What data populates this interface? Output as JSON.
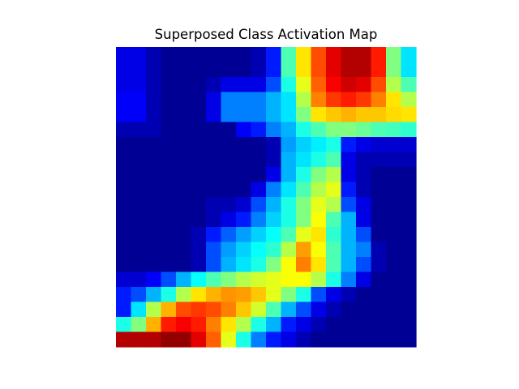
{
  "chart_data": {
    "type": "heatmap",
    "title": "Superposed Class Activation Map",
    "xlabel": "",
    "ylabel": "",
    "axes_visible": false,
    "colormap": "jet",
    "value_range": [
      0,
      1
    ],
    "rows": 20,
    "cols": 20,
    "values": [
      [
        0.1,
        0.1,
        0.05,
        0.02,
        0.02,
        0.02,
        0.02,
        0.02,
        0.02,
        0.05,
        0.15,
        0.45,
        0.65,
        0.8,
        0.9,
        0.95,
        0.95,
        0.85,
        0.5,
        0.35
      ],
      [
        0.1,
        0.1,
        0.05,
        0.02,
        0.02,
        0.02,
        0.02,
        0.02,
        0.02,
        0.05,
        0.15,
        0.45,
        0.65,
        0.8,
        0.9,
        0.95,
        0.95,
        0.85,
        0.5,
        0.35
      ],
      [
        0.1,
        0.1,
        0.05,
        0.02,
        0.02,
        0.02,
        0.05,
        0.1,
        0.1,
        0.1,
        0.2,
        0.4,
        0.6,
        0.78,
        0.88,
        0.92,
        0.9,
        0.8,
        0.55,
        0.45
      ],
      [
        0.12,
        0.12,
        0.05,
        0.02,
        0.02,
        0.02,
        0.1,
        0.25,
        0.25,
        0.25,
        0.3,
        0.35,
        0.55,
        0.75,
        0.82,
        0.85,
        0.82,
        0.75,
        0.65,
        0.55
      ],
      [
        0.12,
        0.12,
        0.05,
        0.02,
        0.02,
        0.02,
        0.1,
        0.25,
        0.25,
        0.25,
        0.3,
        0.35,
        0.5,
        0.65,
        0.68,
        0.7,
        0.68,
        0.68,
        0.66,
        0.65
      ],
      [
        0.05,
        0.05,
        0.05,
        0.02,
        0.02,
        0.02,
        0.02,
        0.02,
        0.12,
        0.15,
        0.25,
        0.3,
        0.4,
        0.45,
        0.5,
        0.5,
        0.48,
        0.45,
        0.44,
        0.42
      ],
      [
        0.02,
        0.02,
        0.02,
        0.02,
        0.02,
        0.02,
        0.02,
        0.02,
        0.02,
        0.02,
        0.05,
        0.28,
        0.33,
        0.36,
        0.4,
        0.15,
        0.1,
        0.08,
        0.08,
        0.08
      ],
      [
        0.02,
        0.02,
        0.02,
        0.02,
        0.02,
        0.02,
        0.02,
        0.02,
        0.02,
        0.02,
        0.05,
        0.3,
        0.35,
        0.4,
        0.45,
        0.1,
        0.05,
        0.05,
        0.05,
        0.05
      ],
      [
        0.02,
        0.02,
        0.02,
        0.02,
        0.02,
        0.02,
        0.02,
        0.02,
        0.02,
        0.02,
        0.1,
        0.3,
        0.4,
        0.5,
        0.55,
        0.1,
        0.05,
        0.02,
        0.02,
        0.02
      ],
      [
        0.02,
        0.02,
        0.02,
        0.02,
        0.02,
        0.02,
        0.02,
        0.02,
        0.02,
        0.1,
        0.25,
        0.35,
        0.45,
        0.55,
        0.6,
        0.15,
        0.05,
        0.02,
        0.02,
        0.02
      ],
      [
        0.02,
        0.02,
        0.02,
        0.02,
        0.02,
        0.02,
        0.05,
        0.05,
        0.08,
        0.2,
        0.3,
        0.4,
        0.5,
        0.6,
        0.55,
        0.2,
        0.1,
        0.02,
        0.02,
        0.02
      ],
      [
        0.02,
        0.02,
        0.02,
        0.02,
        0.02,
        0.02,
        0.05,
        0.1,
        0.15,
        0.25,
        0.33,
        0.4,
        0.5,
        0.62,
        0.45,
        0.3,
        0.1,
        0.02,
        0.02,
        0.02
      ],
      [
        0.02,
        0.02,
        0.02,
        0.02,
        0.02,
        0.05,
        0.15,
        0.22,
        0.28,
        0.33,
        0.38,
        0.45,
        0.6,
        0.65,
        0.42,
        0.3,
        0.2,
        0.02,
        0.02,
        0.02
      ],
      [
        0.02,
        0.02,
        0.02,
        0.02,
        0.02,
        0.05,
        0.2,
        0.28,
        0.33,
        0.38,
        0.42,
        0.55,
        0.72,
        0.62,
        0.45,
        0.3,
        0.25,
        0.05,
        0.02,
        0.02
      ],
      [
        0.02,
        0.02,
        0.02,
        0.02,
        0.02,
        0.05,
        0.2,
        0.3,
        0.35,
        0.4,
        0.5,
        0.62,
        0.75,
        0.65,
        0.45,
        0.3,
        0.2,
        0.05,
        0.02,
        0.02
      ],
      [
        0.08,
        0.08,
        0.12,
        0.2,
        0.3,
        0.38,
        0.45,
        0.5,
        0.55,
        0.58,
        0.6,
        0.62,
        0.62,
        0.55,
        0.4,
        0.25,
        0.1,
        0.02,
        0.02,
        0.02
      ],
      [
        0.15,
        0.2,
        0.3,
        0.4,
        0.55,
        0.65,
        0.7,
        0.73,
        0.72,
        0.68,
        0.6,
        0.5,
        0.4,
        0.2,
        0.1,
        0.05,
        0.02,
        0.02,
        0.02,
        0.02
      ],
      [
        0.15,
        0.35,
        0.55,
        0.7,
        0.8,
        0.82,
        0.8,
        0.75,
        0.68,
        0.58,
        0.45,
        0.3,
        0.2,
        0.1,
        0.05,
        0.02,
        0.02,
        0.02,
        0.02,
        0.02
      ],
      [
        0.4,
        0.5,
        0.7,
        0.85,
        0.88,
        0.85,
        0.75,
        0.65,
        0.55,
        0.4,
        0.3,
        0.15,
        0.1,
        0.05,
        0.02,
        0.02,
        0.02,
        0.02,
        0.02,
        0.02
      ],
      [
        0.95,
        0.95,
        0.95,
        0.98,
        0.98,
        0.9,
        0.78,
        0.6,
        0.4,
        0.25,
        0.15,
        0.1,
        0.05,
        0.02,
        0.02,
        0.02,
        0.02,
        0.02,
        0.02,
        0.02
      ]
    ]
  }
}
